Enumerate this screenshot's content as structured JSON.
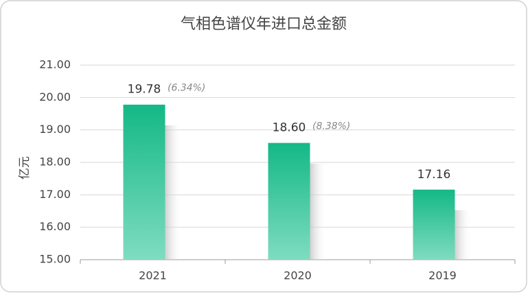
{
  "chart_data": {
    "type": "bar",
    "title": "气相色谱仪年进口总金额",
    "y_label": "亿元",
    "categories": [
      "2021",
      "2020",
      "2019"
    ],
    "values": [
      19.78,
      18.6,
      17.16
    ],
    "value_labels": [
      "19.78",
      "18.60",
      "17.16"
    ],
    "annotations": [
      "(6.34%)",
      "(8.38%)",
      null
    ],
    "color": "#14b886",
    "ylim": [
      15,
      21
    ],
    "yticks": [
      {
        "value": 15,
        "label": "15.00"
      },
      {
        "value": 16,
        "label": "16.00"
      },
      {
        "value": 17,
        "label": "17.00"
      },
      {
        "value": 18,
        "label": "18.00"
      },
      {
        "value": 19,
        "label": "19.00"
      },
      {
        "value": 20,
        "label": "20.00"
      },
      {
        "value": 21,
        "label": "21.00"
      }
    ],
    "grid": true
  }
}
